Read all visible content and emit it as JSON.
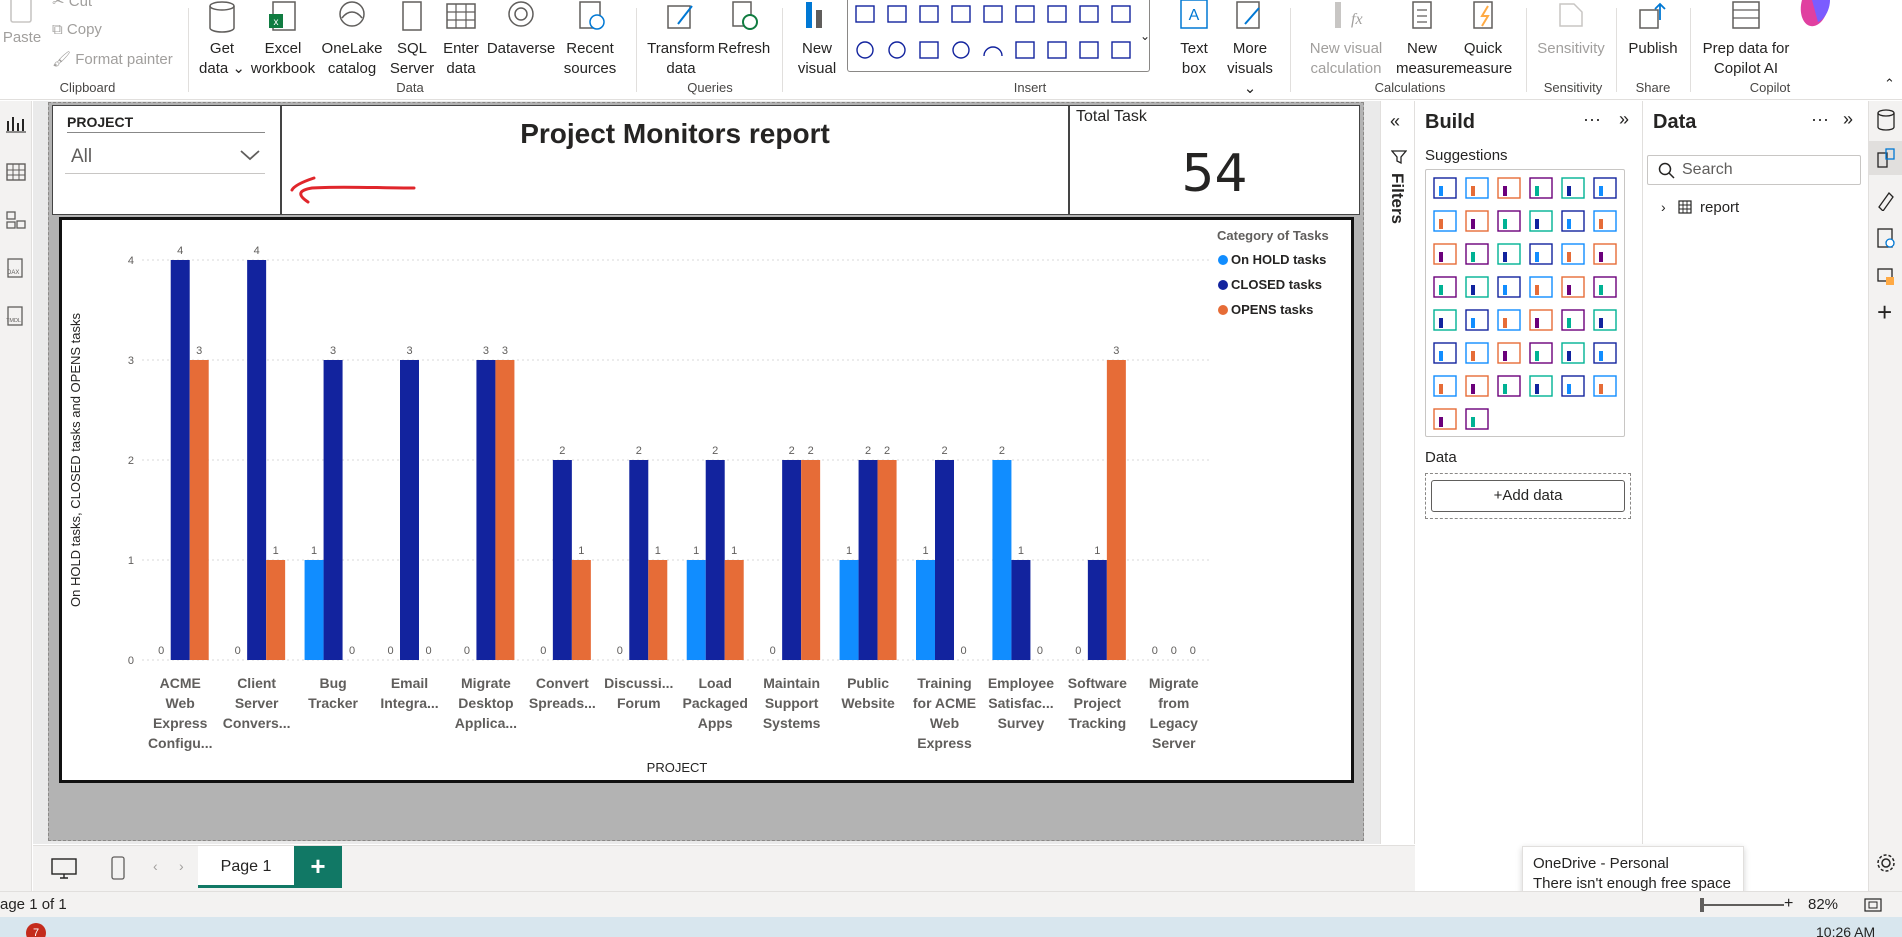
{
  "ribbon": {
    "clipboard": {
      "paste": "Paste",
      "cut": "Cut",
      "copy": "Copy",
      "format_painter": "Format painter",
      "group": "Clipboard"
    },
    "data": {
      "get_data": "Get data",
      "excel": "Excel workbook",
      "onelake": "OneLake catalog",
      "sql": "SQL Server",
      "enter": "Enter data",
      "dataverse": "Dataverse",
      "recent": "Recent sources",
      "group": "Data"
    },
    "queries": {
      "transform": "Transform data",
      "refresh": "Refresh",
      "group": "Queries"
    },
    "insert": {
      "new_visual": "New visual",
      "text_box": "Text box",
      "more_visuals": "More visuals",
      "group": "Insert"
    },
    "calculations": {
      "new_visual_calc": "New visual calculation",
      "new_measure": "New measure",
      "quick_measure": "Quick measure",
      "group": "Calculations"
    },
    "sensitivity": {
      "label": "Sensitivity",
      "group": "Sensitivity"
    },
    "share": {
      "publish": "Publish",
      "group": "Share"
    },
    "copilot": {
      "prep": "Prep data for Copilot AI",
      "group": "Copilot"
    }
  },
  "slicer": {
    "title": "PROJECT",
    "value": "All"
  },
  "report_title": "Project Monitors report",
  "card": {
    "label": "Total Task",
    "value": "54"
  },
  "colors": {
    "onhold": "#118dff",
    "closed": "#12239e",
    "opens": "#e66c37",
    "annotation_arrow": "#e0262b"
  },
  "chart_data": {
    "type": "bar",
    "ylabel": "On HOLD tasks, CLOSED tasks and OPENS tasks",
    "xlabel": "PROJECT",
    "ylim": [
      0,
      4
    ],
    "yticks": [
      "0",
      "1",
      "2",
      "3",
      "4"
    ],
    "legend_title": "Category of Tasks",
    "legend_position": "top-right",
    "grid": true,
    "categories": [
      [
        "ACME",
        "Web",
        "Express",
        "Configu..."
      ],
      [
        "Client",
        "Server",
        "Convers..."
      ],
      [
        "Bug",
        "Tracker"
      ],
      [
        "Email",
        "Integra..."
      ],
      [
        "Migrate",
        "Desktop",
        "Applica..."
      ],
      [
        "Convert",
        "Spreads..."
      ],
      [
        "Discussi...",
        "Forum"
      ],
      [
        "Load",
        "Packaged",
        "Apps"
      ],
      [
        "Maintain",
        "Support",
        "Systems"
      ],
      [
        "Public",
        "Website"
      ],
      [
        "Training",
        "for ACME",
        "Web",
        "Express"
      ],
      [
        "Employee",
        "Satisfac...",
        "Survey"
      ],
      [
        "Software",
        "Project",
        "Tracking"
      ],
      [
        "Migrate",
        "from",
        "Legacy",
        "Server"
      ]
    ],
    "series": [
      {
        "name": "On HOLD tasks",
        "values": [
          0,
          0,
          1,
          0,
          0,
          0,
          0,
          1,
          0,
          1,
          1,
          2,
          0,
          0
        ]
      },
      {
        "name": "CLOSED tasks",
        "values": [
          4,
          4,
          3,
          3,
          3,
          2,
          2,
          2,
          2,
          2,
          2,
          1,
          1,
          0
        ]
      },
      {
        "name": "OPENS tasks",
        "values": [
          3,
          1,
          0,
          0,
          3,
          1,
          1,
          1,
          2,
          2,
          0,
          0,
          3,
          0
        ]
      }
    ]
  },
  "filters_label": "Filters",
  "build": {
    "title": "Build",
    "suggestions": "Suggestions",
    "data_label": "Data",
    "add_data": "+Add data"
  },
  "datapane": {
    "title": "Data",
    "search_placeholder": "Search",
    "tree_item": "report"
  },
  "tabs": {
    "page1": "Page 1",
    "add": "+"
  },
  "status": {
    "page": "age 1 of 1",
    "zoom": "82%"
  },
  "tooltip": {
    "title": "OneDrive - Personal",
    "body": "There isn't enough free space"
  },
  "taskbar": {
    "badge": "7",
    "clock": "10:26 AM"
  }
}
